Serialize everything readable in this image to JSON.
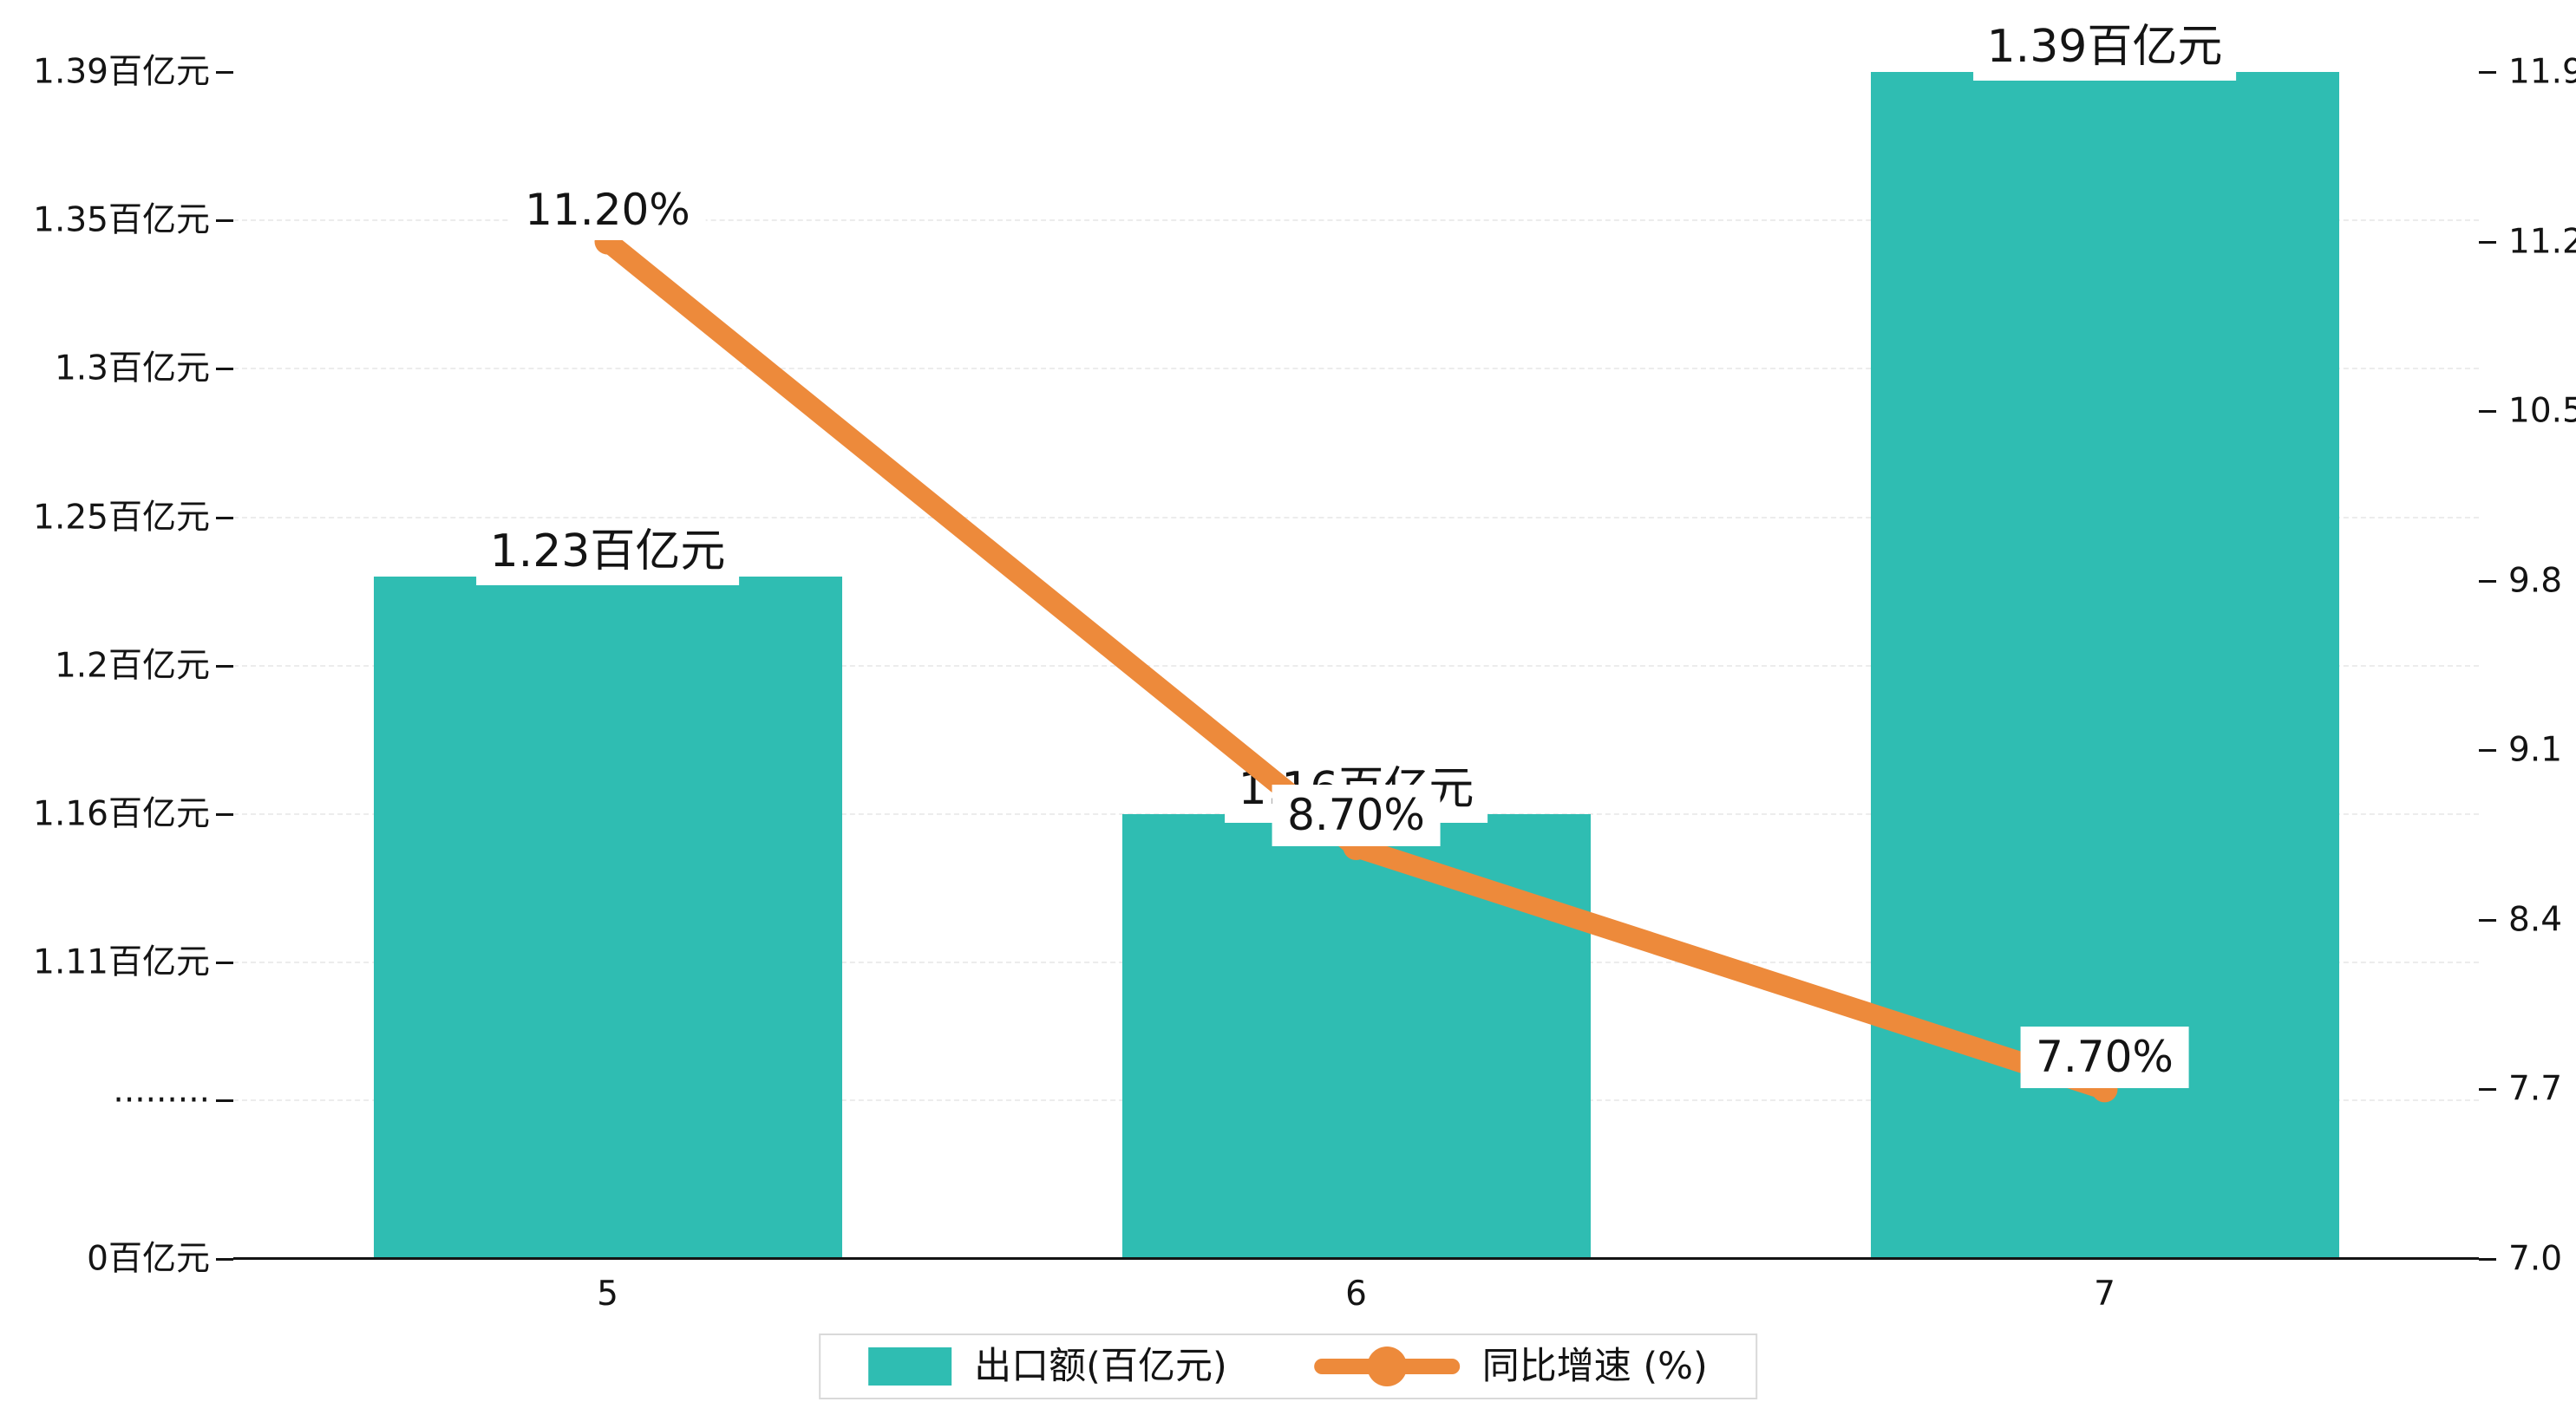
{
  "chart_data": {
    "type": "bar",
    "subtype": "bar+line dual-axis",
    "categories": [
      "5",
      "6",
      "7"
    ],
    "series": [
      {
        "name": "出口额(百亿元)",
        "type": "bar",
        "axis": "left",
        "values": [
          1.23,
          1.16,
          1.39
        ],
        "labels": [
          "1.23百亿元",
          "1.16百亿元",
          "1.39百亿元"
        ],
        "color": "#2FBDB2"
      },
      {
        "name": "同比增速 (%)",
        "type": "line",
        "axis": "right",
        "values": [
          11.2,
          8.7,
          7.7
        ],
        "labels": [
          "11.20%",
          "8.70%",
          "7.70%"
        ],
        "color": "#ED8A3B"
      }
    ],
    "left_axis": {
      "broken": true,
      "ticks": [
        {
          "label": "1.39百亿元",
          "value": 1.39
        },
        {
          "label": "1.35百亿元",
          "value": 1.35
        },
        {
          "label": "1.3百亿元",
          "value": 1.3
        },
        {
          "label": "1.25百亿元",
          "value": 1.25
        },
        {
          "label": "1.2百亿元",
          "value": 1.2
        },
        {
          "label": "1.16百亿元",
          "value": 1.16
        },
        {
          "label": "1.11百亿元",
          "value": 1.11
        },
        {
          "label": "·········",
          "value": null
        },
        {
          "label": "0百亿元",
          "value": 0
        }
      ]
    },
    "right_axis": {
      "min": 7.0,
      "max": 11.9,
      "ticks": [
        "11.9",
        "11.2",
        "10.5",
        "9.8",
        "9.1",
        "8.4",
        "7.7",
        "7.0"
      ]
    },
    "x_axis": {
      "labels": [
        "5",
        "6",
        "7"
      ]
    },
    "legend": [
      {
        "label": "出口额(百亿元)",
        "marker": "bar",
        "color": "#2FBDB2"
      },
      {
        "label": "同比增速 (%)",
        "marker": "line",
        "color": "#ED8A3B"
      }
    ],
    "grid": "dashed-horizontal",
    "background": "#ffffff",
    "title": ""
  }
}
